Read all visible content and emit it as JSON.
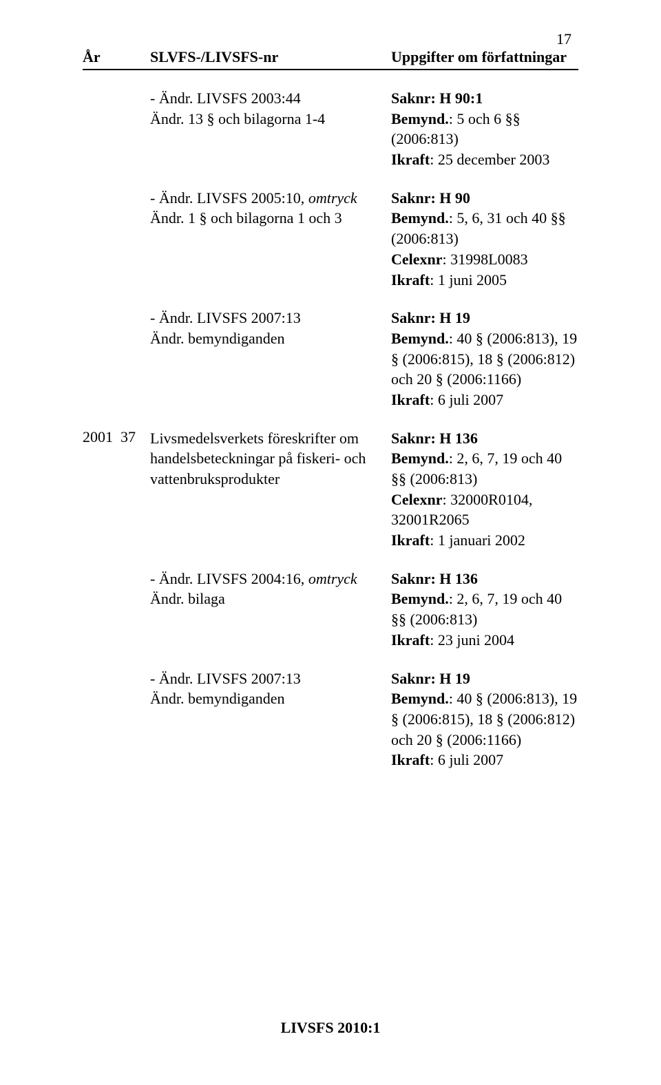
{
  "page_number": "17",
  "header": {
    "year": "År",
    "slv": "SLVFS-/LIVSFS-nr",
    "info": "Uppgifter om författningar"
  },
  "rows": [
    {
      "year": "",
      "num": "",
      "left_line1_prefix": "-  ",
      "left_line1": "Ändr. LIVSFS 2003:44",
      "left_line2": "Ändr. 13 § och bilagorna 1-4",
      "r_saknr": "Saknr: H 90:1",
      "r_bemynd_label": "Bemynd.",
      "r_bemynd_rest": ": 5 och 6 §§ (2006:813)",
      "r_ikraft_label": "Ikraft",
      "r_ikraft_rest": ": 25 december 2003"
    },
    {
      "year": "",
      "num": "",
      "left_line1_prefix": "-  ",
      "left_line1_a": "Ändr. LIVSFS 2005:10,",
      "left_line1_b": " omtryck",
      "left_line2": "Ändr. 1 § och bilagorna 1 och 3",
      "r_saknr": "Saknr: H 90",
      "r_bemynd_label": "Bemynd.",
      "r_bemynd_rest": ": 5, 6, 31 och 40 §§ (2006:813)",
      "r_celex_label": "Celexnr",
      "r_celex_rest": ": 31998L0083",
      "r_ikraft_label": "Ikraft",
      "r_ikraft_rest": ": 1 juni 2005"
    },
    {
      "year": "",
      "num": "",
      "left_line1_prefix": "-  ",
      "left_line1": "Ändr. LIVSFS 2007:13",
      "left_line2": "Ändr. bemyndiganden",
      "r_saknr": "Saknr: H 19",
      "r_bemynd_label": "Bemynd.",
      "r_bemynd_rest": ": 40 § (2006:813), 19 § (2006:815), 18 § (2006:812) och 20 § (2006:1166)",
      "r_ikraft_label": "Ikraft",
      "r_ikraft_rest": ": 6 juli 2007"
    },
    {
      "year": "2001",
      "num": "37",
      "left_line1": "Livsmedelsverkets föreskrifter om handelsbeteckningar på fiskeri- och vattenbruksprodukter",
      "r_saknr": "Saknr: H 136",
      "r_bemynd_label": "Bemynd.",
      "r_bemynd_rest": ": 2, 6, 7, 19 och 40 §§ (2006:813)",
      "r_celex_label": "Celexnr",
      "r_celex_rest": ": 32000R0104, 32001R2065",
      "r_ikraft_label": "Ikraft",
      "r_ikraft_rest": ": 1 januari 2002"
    },
    {
      "year": "",
      "num": "",
      "left_line1_prefix": "-  ",
      "left_line1_a": "Ändr. LIVSFS 2004:16,",
      "left_line1_b": " omtryck",
      "left_line2": "Ändr. bilaga",
      "r_saknr": "Saknr: H 136",
      "r_bemynd_label": "Bemynd.",
      "r_bemynd_rest": ": 2, 6, 7, 19 och 40 §§ (2006:813)",
      "r_ikraft_label": "Ikraft",
      "r_ikraft_rest": ": 23 juni 2004"
    },
    {
      "year": "",
      "num": "",
      "left_line1_prefix": "-  ",
      "left_line1": "Ändr. LIVSFS 2007:13",
      "left_line2": "Ändr. bemyndiganden",
      "r_saknr": "Saknr: H 19",
      "r_bemynd_label": "Bemynd.",
      "r_bemynd_rest": ": 40 § (2006:813), 19 § (2006:815), 18 § (2006:812) och 20 § (2006:1166)",
      "r_ikraft_label": "Ikraft",
      "r_ikraft_rest": ": 6 juli 2007"
    }
  ],
  "footer": "LIVSFS 2010:1"
}
